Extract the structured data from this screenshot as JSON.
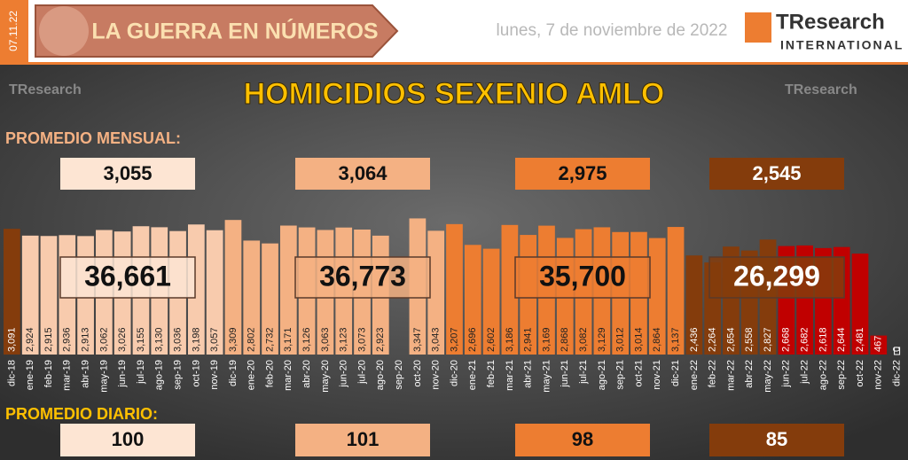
{
  "header": {
    "date_tag": "07.11.22",
    "banner": "LA GUERRA EN NÚMEROS",
    "date": "lunes, 7 de noviembre de 2022",
    "logo": "TResearch",
    "logo_sub": "INTERNATIONAL"
  },
  "summary": {
    "monthly_label": "PROMEDIO MENSUAL:",
    "daily_label": "PROMEDIO DIARIO:",
    "monthly": [
      "3,055",
      "3,064",
      "2,975",
      "2,545"
    ],
    "totals": [
      "36,661",
      "36,773",
      "35,700",
      "26,299"
    ],
    "daily": [
      "100",
      "101",
      "98",
      "85"
    ]
  },
  "chart_data": {
    "type": "bar",
    "title": "HOMICIDIOS SEXENIO AMLO",
    "categories": [
      "dic-18",
      "ene-19",
      "feb-19",
      "mar-19",
      "abr-19",
      "may-19",
      "jun-19",
      "jul-19",
      "ago-19",
      "sep-19",
      "oct-19",
      "nov-19",
      "dic-19",
      "ene-20",
      "feb-20",
      "mar-20",
      "abr-20",
      "may-20",
      "jun-20",
      "jul-20",
      "ago-20",
      "sep-20",
      "oct-20",
      "nov-20",
      "dic-20",
      "ene-21",
      "feb-21",
      "mar-21",
      "abr-21",
      "may-21",
      "jun-21",
      "jul-21",
      "ago-21",
      "sep-21",
      "oct-21",
      "nov-21",
      "dic-21",
      "ene-22",
      "feb-22",
      "mar-22",
      "abr-22",
      "may-22",
      "jun-22",
      "jul-22",
      "ago-22",
      "sep-22",
      "oct-22",
      "nov-22",
      "dic-22"
    ],
    "values": [
      3091,
      2924,
      2915,
      2936,
      2913,
      3062,
      3026,
      3155,
      3130,
      3036,
      3198,
      3057,
      3309,
      2802,
      2732,
      3171,
      3126,
      3063,
      3123,
      3073,
      2923,
      null,
      3347,
      3043,
      3207,
      2696,
      2602,
      3186,
      2941,
      3169,
      2868,
      3082,
      3129,
      3012,
      3014,
      2864,
      3137,
      2436,
      2264,
      2654,
      2558,
      2827,
      2668,
      2682,
      2618,
      2644,
      2481,
      467,
      0
    ],
    "value_labels": [
      "3,091",
      "2,924",
      "2,915",
      "2,936",
      "2,913",
      "3,062",
      "3,026",
      "3,155",
      "3,130",
      "3,036",
      "3,198",
      "3,057",
      "3,309",
      "2,802",
      "2,732",
      "3,171",
      "3,126",
      "3,063",
      "3,123",
      "3,073",
      "2,923",
      null,
      "3,347",
      "3,043",
      "3,207",
      "2,696",
      "2,602",
      "3,186",
      "2,941",
      "3,169",
      "2,868",
      "3,082",
      "3,129",
      "3,012",
      "3,014",
      "2,864",
      "3,137",
      "2,436",
      "2,264",
      "2,654",
      "2,558",
      "2,827",
      "2,668",
      "2,682",
      "2,618",
      "2,644",
      "2,481",
      "467",
      "0"
    ],
    "colors": [
      "#843c0c",
      "#f8cbad",
      "#f8cbad",
      "#f8cbad",
      "#f8cbad",
      "#f8cbad",
      "#f8cbad",
      "#f8cbad",
      "#f8cbad",
      "#f8cbad",
      "#f8cbad",
      "#f8cbad",
      "#f4b183",
      "#f4b183",
      "#f4b183",
      "#f4b183",
      "#f4b183",
      "#f4b183",
      "#f4b183",
      "#f4b183",
      "#f4b183",
      "#f4b183",
      "#f4b183",
      "#f4b183",
      "#ed7d31",
      "#ed7d31",
      "#ed7d31",
      "#ed7d31",
      "#ed7d31",
      "#ed7d31",
      "#ed7d31",
      "#ed7d31",
      "#ed7d31",
      "#ed7d31",
      "#ed7d31",
      "#ed7d31",
      "#ed7d31",
      "#843c0c",
      "#843c0c",
      "#843c0c",
      "#843c0c",
      "#843c0c",
      "#c00000",
      "#c00000",
      "#c00000",
      "#c00000",
      "#c00000",
      "#c00000",
      "#c00000"
    ],
    "ylim": [
      0,
      3400
    ]
  }
}
